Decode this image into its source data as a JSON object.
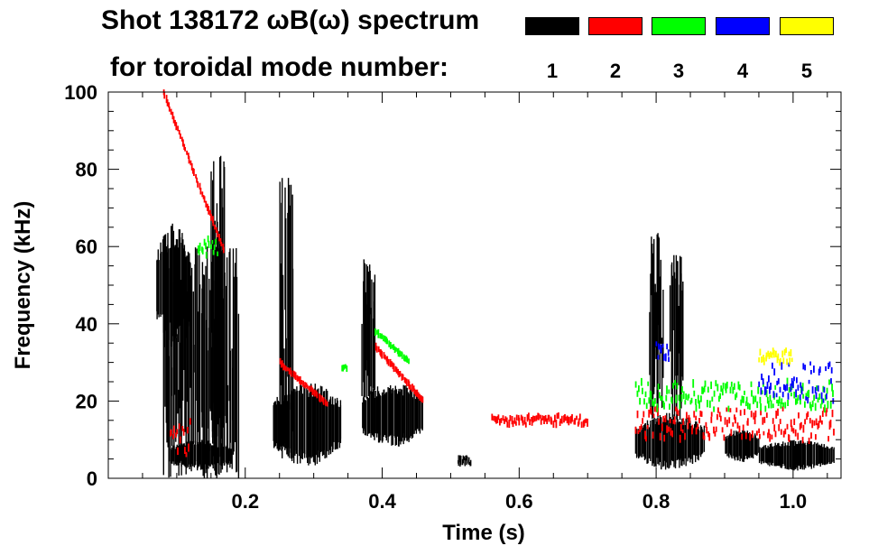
{
  "chart_data": {
    "type": "spectrogram",
    "title": "Shot 138172 ωB(ω) spectrum",
    "subtitle": "for toroidal mode number:",
    "xlabel": "Time (s)",
    "ylabel": "Frequency (kHz)",
    "xlim": [
      0.0,
      1.07
    ],
    "ylim": [
      0,
      100
    ],
    "x_ticks": [
      {
        "value": 0.2,
        "label": "0.2"
      },
      {
        "value": 0.4,
        "label": "0.4"
      },
      {
        "value": 0.6,
        "label": "0.6"
      },
      {
        "value": 0.8,
        "label": "0.8"
      },
      {
        "value": 1.0,
        "label": "1.0"
      }
    ],
    "y_ticks": [
      {
        "value": 0,
        "label": "0"
      },
      {
        "value": 20,
        "label": "20"
      },
      {
        "value": 40,
        "label": "40"
      },
      {
        "value": 60,
        "label": "60"
      },
      {
        "value": 80,
        "label": "80"
      },
      {
        "value": 100,
        "label": "100"
      }
    ],
    "legend": [
      {
        "mode": "1",
        "color": "#000000"
      },
      {
        "mode": "2",
        "color": "#ff0000"
      },
      {
        "mode": "3",
        "color": "#00ff00"
      },
      {
        "mode": "4",
        "color": "#0000ff"
      },
      {
        "mode": "5",
        "color": "#ffff00"
      }
    ],
    "features": [
      {
        "name": "n1-early-burst",
        "mode": 1,
        "t": [
          0.07,
          0.12
        ],
        "f": [
          34,
          66
        ]
      },
      {
        "name": "n1-vertical-streaks",
        "mode": 1,
        "t": [
          0.08,
          0.19
        ],
        "f": [
          0,
          60
        ]
      },
      {
        "name": "n1-streak-0.16",
        "mode": 1,
        "t": [
          0.15,
          0.17
        ],
        "f": [
          0,
          85
        ]
      },
      {
        "name": "n1-low-0.10",
        "mode": 1,
        "t": [
          0.09,
          0.18
        ],
        "f": [
          2,
          10
        ]
      },
      {
        "name": "n1-blob-0.28",
        "mode": 1,
        "t": [
          0.24,
          0.34
        ],
        "f": [
          3,
          25
        ]
      },
      {
        "name": "n1-streak-0.26",
        "mode": 1,
        "t": [
          0.25,
          0.27
        ],
        "f": [
          5,
          78
        ]
      },
      {
        "name": "n1-blob-0.42",
        "mode": 1,
        "t": [
          0.37,
          0.46
        ],
        "f": [
          8,
          25
        ]
      },
      {
        "name": "n1-streak-0.38",
        "mode": 1,
        "t": [
          0.37,
          0.39
        ],
        "f": [
          20,
          57
        ]
      },
      {
        "name": "n1-dot-0.52",
        "mode": 1,
        "t": [
          0.51,
          0.53
        ],
        "f": [
          3,
          6
        ]
      },
      {
        "name": "n1-blob-0.82",
        "mode": 1,
        "t": [
          0.77,
          0.87
        ],
        "f": [
          2,
          17
        ]
      },
      {
        "name": "n1-streak-0.80",
        "mode": 1,
        "t": [
          0.79,
          0.81
        ],
        "f": [
          15,
          64
        ]
      },
      {
        "name": "n1-streak-0.83",
        "mode": 1,
        "t": [
          0.82,
          0.84
        ],
        "f": [
          15,
          58
        ]
      },
      {
        "name": "n1-blob-0.93",
        "mode": 1,
        "t": [
          0.9,
          0.95
        ],
        "f": [
          4,
          13
        ]
      },
      {
        "name": "n1-tail-1.0",
        "mode": 1,
        "t": [
          0.95,
          1.06
        ],
        "f": [
          2,
          10
        ]
      },
      {
        "name": "n2-chirp-0.10",
        "mode": 2,
        "t": [
          0.08,
          0.17
        ],
        "f": [
          58,
          100
        ]
      },
      {
        "name": "n2-low-0.10",
        "mode": 2,
        "t": [
          0.09,
          0.12
        ],
        "f": [
          6,
          15
        ]
      },
      {
        "name": "n2-chirp-0.27",
        "mode": 2,
        "t": [
          0.25,
          0.32
        ],
        "f": [
          19,
          30
        ]
      },
      {
        "name": "n2-chirp-0.42",
        "mode": 2,
        "t": [
          0.39,
          0.46
        ],
        "f": [
          20,
          34
        ]
      },
      {
        "name": "n2-dots-0.6",
        "mode": 2,
        "t": [
          0.56,
          0.7
        ],
        "f": [
          14,
          16
        ]
      },
      {
        "name": "n2-band-0.9",
        "mode": 2,
        "t": [
          0.77,
          1.06
        ],
        "f": [
          10,
          18
        ]
      },
      {
        "name": "n3-dots-0.14",
        "mode": 3,
        "t": [
          0.13,
          0.16
        ],
        "f": [
          58,
          62
        ]
      },
      {
        "name": "n3-chirp-0.42",
        "mode": 3,
        "t": [
          0.39,
          0.44
        ],
        "f": [
          30,
          38
        ]
      },
      {
        "name": "n3-dot-0.34",
        "mode": 3,
        "t": [
          0.34,
          0.35
        ],
        "f": [
          28,
          29
        ]
      },
      {
        "name": "n3-band-0.9",
        "mode": 3,
        "t": [
          0.77,
          1.06
        ],
        "f": [
          18,
          25
        ]
      },
      {
        "name": "n4-dots-0.80",
        "mode": 4,
        "t": [
          0.8,
          0.82
        ],
        "f": [
          30,
          35
        ]
      },
      {
        "name": "n4-dots-0.96",
        "mode": 4,
        "t": [
          0.95,
          1.06
        ],
        "f": [
          20,
          30
        ]
      },
      {
        "name": "n5-dots-0.98",
        "mode": 5,
        "t": [
          0.95,
          1.0
        ],
        "f": [
          30,
          33
        ]
      }
    ]
  }
}
